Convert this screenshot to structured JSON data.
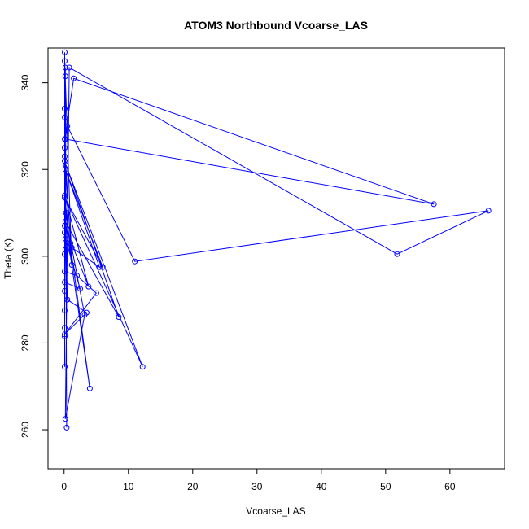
{
  "chart_data": {
    "type": "line",
    "title": "ATOM3 Northbound Vcoarse_LAS",
    "xlabel": "Vcoarse_LAS",
    "ylabel": "Theta (K)",
    "xlim": [
      -2.5,
      68.5
    ],
    "ylim": [
      251,
      348
    ],
    "xticks": [
      0,
      10,
      20,
      30,
      40,
      50,
      60
    ],
    "yticks": [
      260,
      280,
      300,
      320,
      340
    ],
    "grid": false,
    "legend": "none",
    "series_color": "#0000ff",
    "series": [
      {
        "x": [
          0.2,
          0.4,
          0.2,
          0.1,
          1.5,
          57.5,
          0.2,
          0.5,
          11.0,
          66.0,
          51.8,
          0.8,
          0.2,
          3.2,
          1.2,
          5.5,
          0.2,
          6.0,
          0.1,
          12.2,
          0.3,
          8.5,
          0.2,
          4.0,
          0.3,
          0.1,
          0.1,
          2.0,
          5.0,
          0.1,
          3.5,
          0.5,
          0.1,
          0.2,
          2.5,
          0.1,
          0.1,
          1.0,
          0.1,
          0.2,
          0.1,
          3.8,
          0.1,
          1.2,
          0.1,
          0.1,
          0.1,
          0.1,
          0.1,
          0.1,
          0.1,
          0.1,
          0.1,
          0.1
        ],
        "y": [
          343.5,
          260.5,
          341.5,
          327.0,
          341.0,
          312.0,
          327.0,
          330.0,
          298.8,
          310.5,
          300.5,
          343.5,
          262.5,
          286.5,
          302.0,
          297.5,
          320.0,
          297.5,
          313.5,
          274.5,
          321.0,
          286.0,
          308.0,
          269.5,
          310.0,
          292.0,
          296.5,
          295.5,
          291.5,
          282.0,
          287.0,
          290.0,
          322.0,
          304.0,
          292.5,
          294.0,
          323.0,
          303.0,
          325.0,
          301.5,
          307.0,
          293.0,
          314.0,
          298.0,
          345.0,
          347.0,
          283.5,
          274.5,
          281.5,
          287.5,
          300.5,
          305.5,
          332.0,
          334.0
        ]
      }
    ]
  }
}
